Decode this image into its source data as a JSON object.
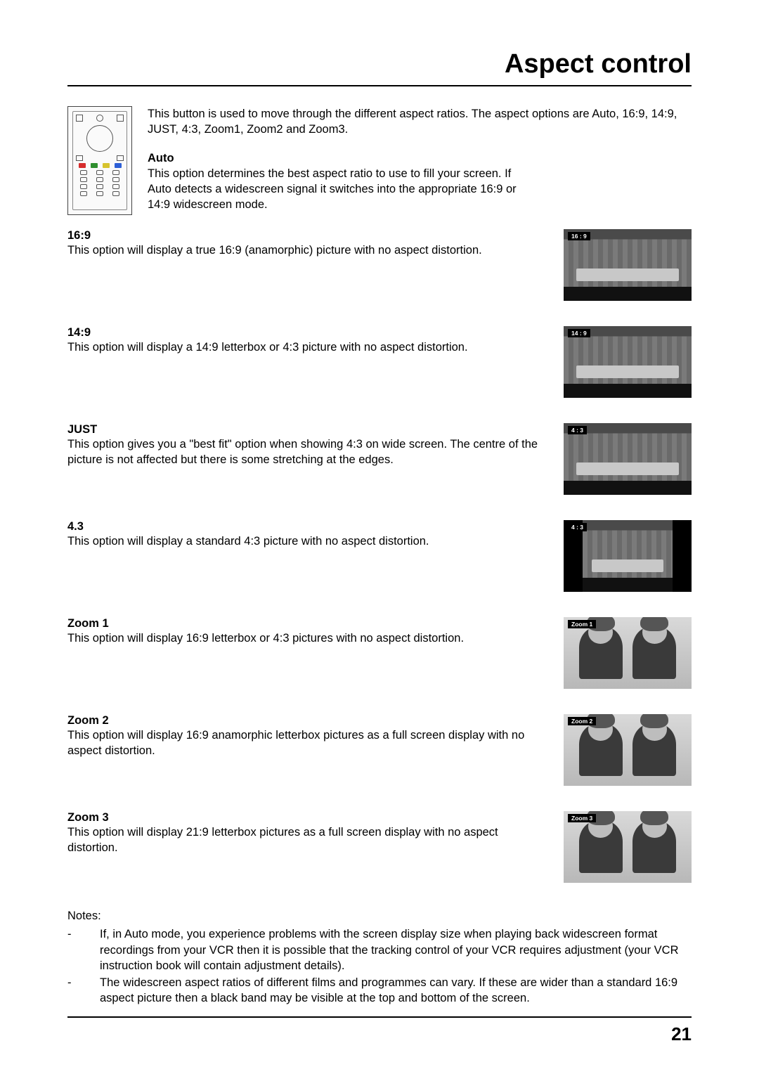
{
  "title": "Aspect control",
  "intro": "This button is used to move through the different aspect ratios. The aspect options are Auto, 16:9, 14:9, JUST, 4:3, Zoom1, Zoom2 and Zoom3.",
  "auto": {
    "heading": "Auto",
    "body": "This option determines the best aspect ratio to use to fill your screen. If Auto detects a widescreen signal it switches into the appropriate 16:9 or 14:9 widescreen mode."
  },
  "items": [
    {
      "heading": "16:9",
      "body": "This option will display a true 16:9 (anamorphic) picture with no aspect distortion.",
      "thumb_label": "16 : 9",
      "scene": "stage",
      "pillarbox": false
    },
    {
      "heading": "14:9",
      "body": "This option will display a 14:9 letterbox or 4:3 picture with no aspect distortion.",
      "thumb_label": "14 : 9",
      "scene": "stage",
      "pillarbox": false
    },
    {
      "heading": "JUST",
      "body": "This option gives you a \"best fit\" option when showing 4:3 on wide screen. The centre of the picture is not affected but there is some stretching at the edges.",
      "thumb_label": "4 : 3",
      "scene": "stage",
      "pillarbox": false
    },
    {
      "heading": "4.3",
      "body": "This option will display a standard 4:3 picture with no aspect distortion.",
      "thumb_label": "4 : 3",
      "scene": "stage",
      "pillarbox": true
    },
    {
      "heading": "Zoom 1",
      "body": "This option will display 16:9 letterbox or 4:3 pictures with no aspect distortion.",
      "thumb_label": "Zoom 1",
      "scene": "kids",
      "pillarbox": false
    },
    {
      "heading": "Zoom 2",
      "body": "This option will display 16:9 anamorphic letterbox pictures as a full screen display with no aspect distortion.",
      "thumb_label": "Zoom 2",
      "scene": "kids",
      "pillarbox": false
    },
    {
      "heading": "Zoom 3",
      "body": "This option will display 21:9 letterbox pictures as a full screen display with no aspect distortion.",
      "thumb_label": "Zoom 3",
      "scene": "kids",
      "pillarbox": false
    }
  ],
  "notes_heading": "Notes:",
  "notes": [
    "If, in Auto mode, you experience problems with the screen display size when playing back widescreen format recordings from your VCR then it is possible that the tracking control of your VCR requires adjustment (your VCR instruction book will contain adjustment details).",
    "The widescreen aspect ratios of different films and programmes can vary. If these are wider than a standard 16:9 aspect picture then a black band may be visible at the top and bottom of the screen."
  ],
  "page_number": "21",
  "remote_colors": [
    "#d62d2d",
    "#2f8f2f",
    "#d6c32d",
    "#2d5fd6"
  ]
}
